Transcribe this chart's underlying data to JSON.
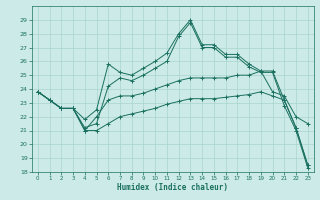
{
  "background_color": "#cceae7",
  "grid_color": "#aad4d0",
  "line_color": "#1a7060",
  "xlabel": "Humidex (Indice chaleur)",
  "xlim": [
    -0.5,
    23.5
  ],
  "ylim": [
    18,
    30
  ],
  "yticks": [
    18,
    19,
    20,
    21,
    22,
    23,
    24,
    25,
    26,
    27,
    28,
    29
  ],
  "xticks": [
    0,
    1,
    2,
    3,
    4,
    5,
    6,
    7,
    8,
    9,
    10,
    11,
    12,
    13,
    14,
    15,
    16,
    17,
    18,
    19,
    20,
    21,
    22,
    23
  ],
  "lines": [
    {
      "x": [
        0,
        1,
        2,
        3,
        4,
        5,
        6,
        7,
        8,
        9,
        10,
        11,
        12,
        13,
        14,
        15,
        16,
        17,
        18,
        19,
        20,
        21,
        22,
        23
      ],
      "y": [
        23.8,
        23.2,
        22.6,
        22.6,
        21.8,
        22.5,
        25.8,
        25.2,
        25.0,
        25.5,
        26.0,
        26.6,
        28.0,
        29.0,
        27.2,
        27.2,
        26.5,
        26.5,
        25.8,
        25.3,
        25.3,
        23.2,
        21.2,
        18.5
      ]
    },
    {
      "x": [
        0,
        1,
        2,
        3,
        4,
        5,
        6,
        7,
        8,
        9,
        10,
        11,
        12,
        13,
        14,
        15,
        16,
        17,
        18,
        19,
        20,
        21,
        22,
        23
      ],
      "y": [
        23.8,
        23.2,
        22.6,
        22.6,
        21.2,
        21.5,
        24.2,
        24.8,
        24.6,
        25.0,
        25.5,
        26.0,
        27.8,
        28.8,
        27.0,
        27.0,
        26.3,
        26.3,
        25.6,
        25.2,
        25.2,
        22.8,
        21.0,
        18.3
      ]
    },
    {
      "x": [
        0,
        1,
        2,
        3,
        4,
        5,
        6,
        7,
        8,
        9,
        10,
        11,
        12,
        13,
        14,
        15,
        16,
        17,
        18,
        19,
        20,
        21,
        22,
        23
      ],
      "y": [
        23.8,
        23.2,
        22.6,
        22.6,
        21.0,
        22.0,
        23.2,
        23.5,
        23.5,
        23.7,
        24.0,
        24.3,
        24.6,
        24.8,
        24.8,
        24.8,
        24.8,
        25.0,
        25.0,
        25.3,
        23.8,
        23.5,
        22.0,
        21.5
      ]
    },
    {
      "x": [
        0,
        1,
        2,
        3,
        4,
        5,
        6,
        7,
        8,
        9,
        10,
        11,
        12,
        13,
        14,
        15,
        16,
        17,
        18,
        19,
        20,
        21,
        22,
        23
      ],
      "y": [
        23.8,
        23.2,
        22.6,
        22.6,
        21.0,
        21.0,
        21.5,
        22.0,
        22.2,
        22.4,
        22.6,
        22.9,
        23.1,
        23.3,
        23.3,
        23.3,
        23.4,
        23.5,
        23.6,
        23.8,
        23.5,
        23.2,
        21.2,
        18.5
      ]
    }
  ]
}
